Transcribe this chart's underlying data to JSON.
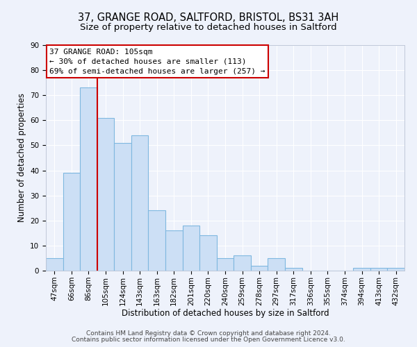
{
  "title1": "37, GRANGE ROAD, SALTFORD, BRISTOL, BS31 3AH",
  "title2": "Size of property relative to detached houses in Saltford",
  "xlabel": "Distribution of detached houses by size in Saltford",
  "ylabel": "Number of detached properties",
  "categories": [
    "47sqm",
    "66sqm",
    "86sqm",
    "105sqm",
    "124sqm",
    "143sqm",
    "163sqm",
    "182sqm",
    "201sqm",
    "220sqm",
    "240sqm",
    "259sqm",
    "278sqm",
    "297sqm",
    "317sqm",
    "336sqm",
    "355sqm",
    "374sqm",
    "394sqm",
    "413sqm",
    "432sqm"
  ],
  "values": [
    5,
    39,
    73,
    61,
    51,
    54,
    24,
    16,
    18,
    14,
    5,
    6,
    2,
    5,
    1,
    0,
    0,
    0,
    1,
    1,
    1
  ],
  "bar_color": "#ccdff5",
  "bar_edge_color": "#7fb8e0",
  "red_line_index": 3,
  "annotation_title": "37 GRANGE ROAD: 105sqm",
  "annotation_line1": "← 30% of detached houses are smaller (113)",
  "annotation_line2": "69% of semi-detached houses are larger (257) →",
  "annotation_box_color": "#ffffff",
  "annotation_box_edge": "#cc0000",
  "red_line_color": "#cc0000",
  "ylim": [
    0,
    90
  ],
  "yticks": [
    0,
    10,
    20,
    30,
    40,
    50,
    60,
    70,
    80,
    90
  ],
  "footer1": "Contains HM Land Registry data © Crown copyright and database right 2024.",
  "footer2": "Contains public sector information licensed under the Open Government Licence v3.0.",
  "bg_color": "#eef2fb",
  "grid_color": "#ffffff",
  "title1_fontsize": 10.5,
  "title2_fontsize": 9.5,
  "axis_label_fontsize": 8.5,
  "tick_fontsize": 7.5,
  "footer_fontsize": 6.5
}
